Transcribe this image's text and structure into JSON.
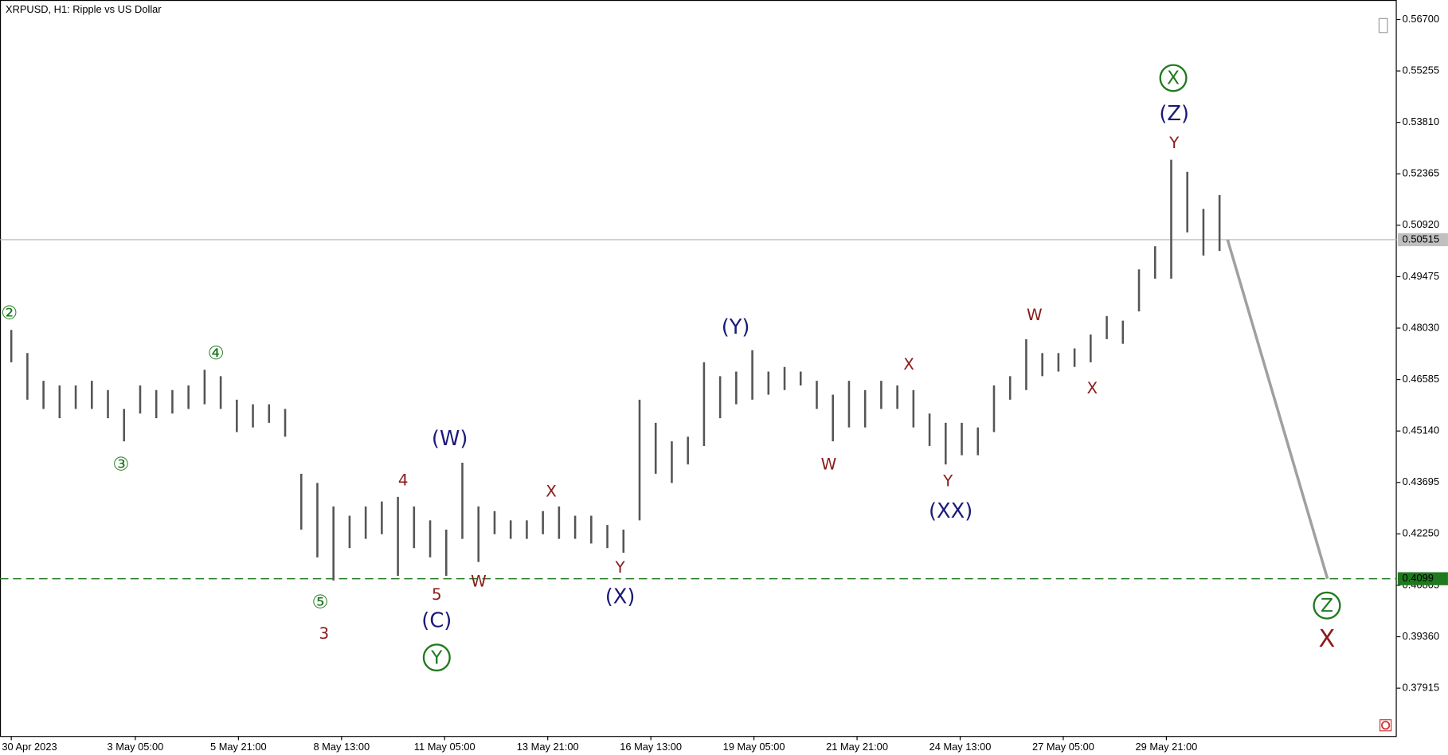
{
  "chart_data": {
    "type": "bar",
    "title": "XRPUSD, H1:  Ripple vs US Dollar",
    "xlim": [
      -7,
      860
    ],
    "ylim": [
      0.36559,
      0.57248
    ],
    "yticks": [
      {
        "value": 0.567,
        "label": "0.56700"
      },
      {
        "value": 0.55255,
        "label": "0.55255"
      },
      {
        "value": 0.5381,
        "label": "0.53810"
      },
      {
        "value": 0.52365,
        "label": "0.52365"
      },
      {
        "value": 0.5092,
        "label": "0.50920"
      },
      {
        "value": 0.49475,
        "label": "0.49475"
      },
      {
        "value": 0.4803,
        "label": "0.48030"
      },
      {
        "value": 0.46585,
        "label": "0.46585"
      },
      {
        "value": 0.4514,
        "label": "0.45140"
      },
      {
        "value": 0.43695,
        "label": "0.43695"
      },
      {
        "value": 0.4225,
        "label": "0.42250"
      },
      {
        "value": 0.40805,
        "label": "0.40805"
      },
      {
        "value": 0.3936,
        "label": "0.39360"
      },
      {
        "value": 0.37915,
        "label": "0.37915"
      }
    ],
    "xticks": [
      {
        "value": 0,
        "label": "30 Apr 2023"
      },
      {
        "value": 77,
        "label": "3 May 05:00"
      },
      {
        "value": 141,
        "label": "5 May 21:00"
      },
      {
        "value": 205,
        "label": "8 May 13:00"
      },
      {
        "value": 269,
        "label": "11 May 05:00"
      },
      {
        "value": 333,
        "label": "13 May 21:00"
      },
      {
        "value": 397,
        "label": "16 May 13:00"
      },
      {
        "value": 461,
        "label": "19 May 05:00"
      },
      {
        "value": 525,
        "label": "21 May 21:00"
      },
      {
        "value": 589,
        "label": "24 May 13:00"
      },
      {
        "value": 653,
        "label": "27 May 05:00"
      },
      {
        "value": 717,
        "label": "29 May 21:00"
      }
    ],
    "series": [
      {
        "name": "XRPUSD",
        "color": "#555555",
        "x": [
          0,
          10,
          20,
          30,
          40,
          50,
          60,
          70,
          80,
          90,
          100,
          110,
          120,
          130,
          140,
          150,
          160,
          170,
          180,
          190,
          200,
          210,
          220,
          230,
          240,
          250,
          260,
          270,
          280,
          290,
          300,
          310,
          320,
          330,
          340,
          350,
          360,
          370,
          380,
          390,
          400,
          410,
          420,
          430,
          440,
          450,
          460,
          470,
          480,
          490,
          500,
          510,
          520,
          530,
          540,
          550,
          560,
          570,
          580,
          590,
          600,
          610,
          620,
          630,
          640,
          650,
          660,
          670,
          680,
          690,
          700,
          710,
          720,
          730,
          740,
          750
        ],
        "highs": [
          0.4798,
          0.4733,
          0.4655,
          0.4642,
          0.4642,
          0.4655,
          0.4629,
          0.4576,
          0.4642,
          0.4629,
          0.4629,
          0.4642,
          0.4686,
          0.4668,
          0.4602,
          0.4589,
          0.4589,
          0.4576,
          0.4394,
          0.4368,
          0.4302,
          0.4276,
          0.4302,
          0.4316,
          0.4329,
          0.4302,
          0.4263,
          0.4237,
          0.4425,
          0.4302,
          0.4289,
          0.4263,
          0.4263,
          0.4289,
          0.4302,
          0.4276,
          0.4276,
          0.425,
          0.4237,
          0.4602,
          0.4537,
          0.4485,
          0.4498,
          0.4707,
          0.4668,
          0.4681,
          0.4741,
          0.4681,
          0.4694,
          0.4681,
          0.4655,
          0.4616,
          0.4655,
          0.4629,
          0.4655,
          0.4642,
          0.4629,
          0.4563,
          0.4537,
          0.4537,
          0.4524,
          0.4642,
          0.4668,
          0.4772,
          0.4733,
          0.4733,
          0.4746,
          0.4785,
          0.4837,
          0.4824,
          0.4968,
          0.5033,
          0.5276,
          0.5242,
          0.5138,
          0.5177
        ],
        "lows": [
          0.4707,
          0.4602,
          0.4576,
          0.455,
          0.4576,
          0.4576,
          0.455,
          0.4485,
          0.4563,
          0.455,
          0.4563,
          0.4576,
          0.4589,
          0.4576,
          0.4511,
          0.4524,
          0.4537,
          0.4498,
          0.4237,
          0.4159,
          0.4094,
          0.4185,
          0.4211,
          0.4224,
          0.4107,
          0.4185,
          0.4159,
          0.4107,
          0.4211,
          0.4146,
          0.4224,
          0.4211,
          0.4211,
          0.4224,
          0.4211,
          0.4211,
          0.4198,
          0.4185,
          0.4172,
          0.4263,
          0.4394,
          0.4368,
          0.442,
          0.4472,
          0.455,
          0.4589,
          0.4602,
          0.4616,
          0.4629,
          0.4642,
          0.4576,
          0.4485,
          0.4524,
          0.4524,
          0.4576,
          0.4576,
          0.4524,
          0.4472,
          0.442,
          0.4446,
          0.4446,
          0.4511,
          0.4602,
          0.4629,
          0.4668,
          0.4681,
          0.4694,
          0.4707,
          0.4772,
          0.4759,
          0.485,
          0.4942,
          0.4942,
          0.5072,
          0.5007,
          0.502
        ]
      }
    ],
    "current_price": 0.50515,
    "level": 0.4099,
    "level_color": "#1f7a1f",
    "projection": {
      "x": [
        755,
        817
      ],
      "values": [
        0.50515,
        0.4099
      ],
      "color": "#a0a0a0"
    },
    "annotations": [
      {
        "text": "②",
        "color": "#1f7a1f"
      },
      {
        "text": "③",
        "color": "#1f7a1f"
      },
      {
        "text": "④",
        "color": "#1f7a1f"
      },
      {
        "text": "⑤",
        "color": "#1f7a1f"
      },
      {
        "text": "3",
        "color": "#8b1a1a"
      },
      {
        "text": "4",
        "color": "#8b1a1a"
      },
      {
        "text": "5",
        "color": "#8b1a1a"
      },
      {
        "text": "(C)",
        "color": "#1a1a7a"
      },
      {
        "text": "Y",
        "color": "#1f7a1f",
        "circled": true
      },
      {
        "text": "(W)",
        "color": "#1a1a7a"
      },
      {
        "text": "W",
        "color": "#8b1a1a"
      },
      {
        "text": "X",
        "color": "#8b1a1a"
      },
      {
        "text": "Y",
        "color": "#8b1a1a"
      },
      {
        "text": "(X)",
        "color": "#1a1a7a"
      },
      {
        "text": "(Y)",
        "color": "#1a1a7a"
      },
      {
        "text": "W",
        "color": "#8b1a1a"
      },
      {
        "text": "X",
        "color": "#8b1a1a"
      },
      {
        "text": "Y",
        "color": "#8b1a1a"
      },
      {
        "text": "(XX)",
        "color": "#1a1a7a"
      },
      {
        "text": "W",
        "color": "#8b1a1a"
      },
      {
        "text": "X",
        "color": "#8b1a1a"
      },
      {
        "text": "X",
        "color": "#1f7a1f",
        "circled": true
      },
      {
        "text": "(Z)",
        "color": "#1a1a7a"
      },
      {
        "text": "Y",
        "color": "#8b1a1a"
      },
      {
        "text": "Z",
        "color": "#1f7a1f",
        "circled": true
      },
      {
        "text": "X",
        "color": "#8b1a1a"
      }
    ]
  }
}
